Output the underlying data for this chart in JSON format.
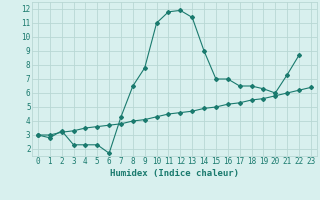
{
  "xlabel": "Humidex (Indice chaleur)",
  "ylabel": "",
  "x_values": [
    0,
    1,
    2,
    3,
    4,
    5,
    6,
    7,
    8,
    9,
    10,
    11,
    12,
    13,
    14,
    15,
    16,
    17,
    18,
    19,
    20,
    21,
    22,
    23
  ],
  "curve1": [
    3.0,
    2.8,
    3.3,
    2.3,
    2.3,
    2.3,
    1.7,
    4.3,
    6.5,
    7.8,
    11.0,
    11.8,
    11.9,
    11.4,
    9.0,
    7.0,
    7.0,
    6.5,
    6.5,
    6.3,
    6.0,
    7.3,
    8.7,
    null
  ],
  "curve2": [
    3.0,
    3.0,
    3.2,
    3.3,
    3.5,
    3.6,
    3.7,
    3.8,
    4.0,
    4.1,
    4.3,
    4.5,
    4.6,
    4.7,
    4.9,
    5.0,
    5.2,
    5.3,
    5.5,
    5.6,
    5.8,
    6.0,
    6.2,
    6.4
  ],
  "line_color": "#1a7a6e",
  "bg_color": "#d8f0ee",
  "grid_color": "#b8d8d4",
  "ylim": [
    1.5,
    12.5
  ],
  "xlim": [
    -0.5,
    23.5
  ],
  "yticks": [
    2,
    3,
    4,
    5,
    6,
    7,
    8,
    9,
    10,
    11,
    12
  ],
  "xticks": [
    0,
    1,
    2,
    3,
    4,
    5,
    6,
    7,
    8,
    9,
    10,
    11,
    12,
    13,
    14,
    15,
    16,
    17,
    18,
    19,
    20,
    21,
    22,
    23
  ],
  "tick_fontsize": 5.5,
  "xlabel_fontsize": 6.5
}
